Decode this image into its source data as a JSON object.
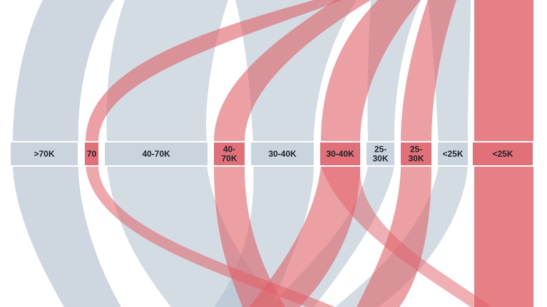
{
  "colors": {
    "background": "#ffffff",
    "gray_flow": "#aebdcc",
    "red_flow": "#e06068",
    "gray_box": "#c9d4de",
    "red_box": "#e27078",
    "label_text": "#1f2328"
  },
  "chart_data": {
    "type": "sankey",
    "title": "",
    "categories": [
      ">70K",
      "70",
      "40-70K",
      "40-70K",
      "30-40K",
      "30-40K",
      "25-30K",
      "25-30K",
      "<25K",
      "<25K"
    ],
    "nodes": [
      {
        "label": ">70K",
        "lines": [
          ">70K"
        ],
        "group": "gray"
      },
      {
        "label": "70",
        "lines": [
          "70"
        ],
        "group": "red"
      },
      {
        "label": "40-70K",
        "lines": [
          "40-70K"
        ],
        "group": "gray"
      },
      {
        "label": "40-70K",
        "lines": [
          "40-",
          "70K"
        ],
        "group": "red"
      },
      {
        "label": "30-40K",
        "lines": [
          "30-40K"
        ],
        "group": "gray"
      },
      {
        "label": "30-40K",
        "lines": [
          "30-40K"
        ],
        "group": "red"
      },
      {
        "label": "25-30K",
        "lines": [
          "25-",
          "30K"
        ],
        "group": "gray"
      },
      {
        "label": "25-30K",
        "lines": [
          "25-",
          "30K"
        ],
        "group": "red"
      },
      {
        "label": "<25K",
        "lines": [
          "<25K"
        ],
        "group": "gray"
      },
      {
        "label": "<25K",
        "lines": [
          "<25K"
        ],
        "group": "red"
      }
    ]
  }
}
